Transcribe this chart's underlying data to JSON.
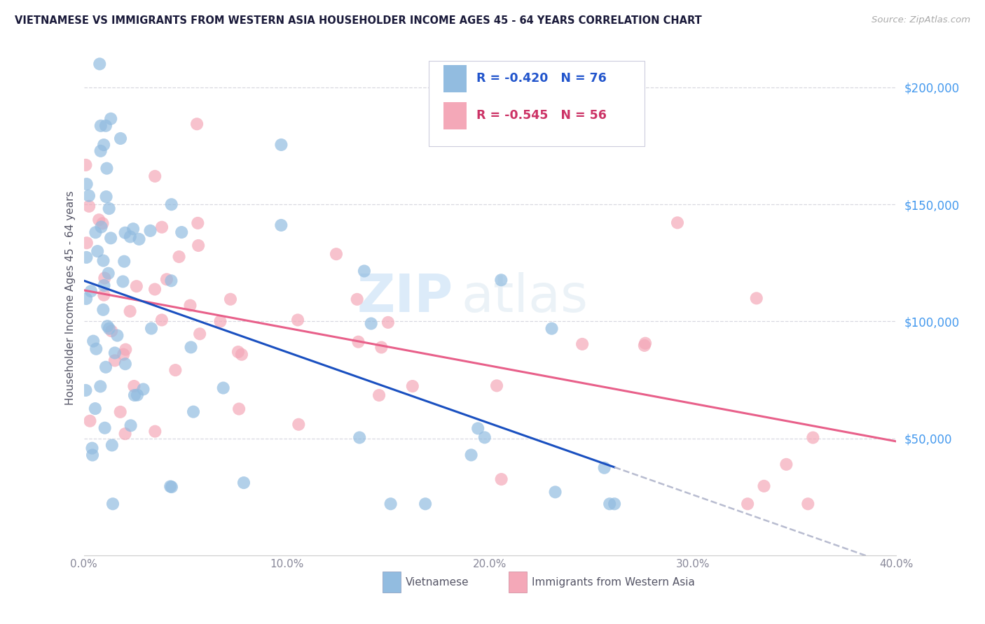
{
  "title": "VIETNAMESE VS IMMIGRANTS FROM WESTERN ASIA HOUSEHOLDER INCOME AGES 45 - 64 YEARS CORRELATION CHART",
  "source": "Source: ZipAtlas.com",
  "ylabel": "Householder Income Ages 45 - 64 years",
  "xlim": [
    0.0,
    0.4
  ],
  "ylim": [
    0,
    220000
  ],
  "xtick_labels": [
    "0.0%",
    "10.0%",
    "20.0%",
    "30.0%",
    "40.0%"
  ],
  "xtick_values": [
    0.0,
    0.1,
    0.2,
    0.3,
    0.4
  ],
  "ytick_labels": [
    "$50,000",
    "$100,000",
    "$150,000",
    "$200,000"
  ],
  "ytick_values": [
    50000,
    100000,
    150000,
    200000
  ],
  "legend_r1": "R = -0.420",
  "legend_n1": "N = 76",
  "legend_r2": "R = -0.545",
  "legend_n2": "N = 56",
  "color_vietnamese": "#92bce0",
  "color_western_asia": "#f4a8b8",
  "color_line_vietnamese": "#1a50c0",
  "color_line_western_asia": "#e8608a",
  "color_line_ext": "#b8bcd0",
  "background_color": "#ffffff",
  "grid_color": "#d8d8e0",
  "title_color": "#1a1a3a",
  "axis_label_color": "#555566",
  "tick_label_color": "#888899",
  "right_tick_color": "#4499ee",
  "legend_text_color1": "#2255cc",
  "legend_text_color2": "#cc3366",
  "legend_rn_color": "#2255cc",
  "bottom_legend_color": "#555566",
  "source_color": "#aaaaaa",
  "watermark_color": "#d0e8f8",
  "seed": 7
}
